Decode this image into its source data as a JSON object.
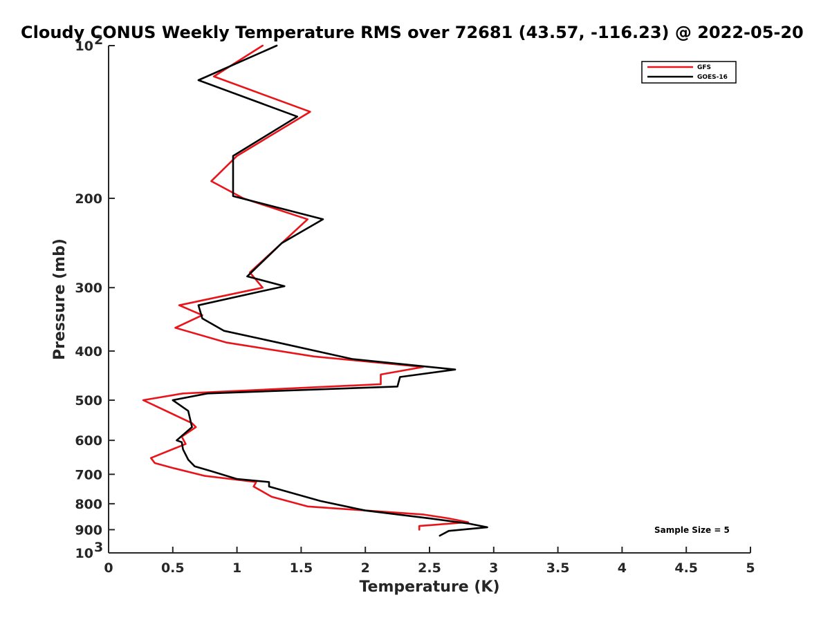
{
  "chart_data": {
    "type": "line",
    "title": "Cloudy CONUS Weekly Temperature RMS over 72681 (43.57, -116.23) @ 2022-05-20",
    "xlabel": "Temperature (K)",
    "ylabel": "Pressure (mb)",
    "xlim": [
      0,
      5
    ],
    "ylim": [
      100,
      1000
    ],
    "y_scale": "log",
    "y_reversed": true,
    "grid": false,
    "legend_position": "top-right",
    "x_ticks": [
      0,
      0.5,
      1,
      1.5,
      2,
      2.5,
      3,
      3.5,
      4,
      4.5,
      5
    ],
    "x_tick_labels": [
      "0",
      "0.5",
      "1",
      "1.5",
      "2",
      "2.5",
      "3",
      "3.5",
      "4",
      "4.5",
      "5"
    ],
    "y_ticks": [
      100,
      200,
      300,
      400,
      500,
      600,
      700,
      800,
      900,
      1000
    ],
    "y_tick_labels": [
      {
        "base": "10",
        "exp": "2"
      },
      {
        "base": "200",
        "exp": ""
      },
      {
        "base": "300",
        "exp": ""
      },
      {
        "base": "400",
        "exp": ""
      },
      {
        "base": "500",
        "exp": ""
      },
      {
        "base": "600",
        "exp": ""
      },
      {
        "base": "700",
        "exp": ""
      },
      {
        "base": "800",
        "exp": ""
      },
      {
        "base": "900",
        "exp": ""
      },
      {
        "base": "10",
        "exp": "3"
      }
    ],
    "annotation": "Sample Size = 5",
    "series": [
      {
        "name": "GFS",
        "color": "#e8141a",
        "points": [
          [
            1.2,
            100
          ],
          [
            0.82,
            115
          ],
          [
            1.57,
            135
          ],
          [
            1.0,
            165
          ],
          [
            0.8,
            185
          ],
          [
            1.05,
            200
          ],
          [
            1.55,
            220
          ],
          [
            1.35,
            245
          ],
          [
            1.1,
            280
          ],
          [
            1.2,
            300
          ],
          [
            0.55,
            325
          ],
          [
            0.73,
            340
          ],
          [
            0.52,
            360
          ],
          [
            0.92,
            385
          ],
          [
            1.6,
            410
          ],
          [
            2.45,
            430
          ],
          [
            2.12,
            445
          ],
          [
            2.12,
            465
          ],
          [
            0.58,
            485
          ],
          [
            0.27,
            500
          ],
          [
            0.65,
            555
          ],
          [
            0.68,
            565
          ],
          [
            0.57,
            590
          ],
          [
            0.6,
            610
          ],
          [
            0.33,
            650
          ],
          [
            0.36,
            665
          ],
          [
            0.5,
            680
          ],
          [
            0.75,
            705
          ],
          [
            1.15,
            725
          ],
          [
            1.13,
            740
          ],
          [
            1.27,
            775
          ],
          [
            1.55,
            810
          ],
          [
            2.45,
            840
          ],
          [
            2.65,
            855
          ],
          [
            2.8,
            870
          ],
          [
            2.42,
            885
          ],
          [
            2.42,
            900
          ]
        ]
      },
      {
        "name": "GOES-16",
        "color": "#000000",
        "points": [
          [
            1.31,
            100
          ],
          [
            0.7,
            117
          ],
          [
            1.47,
            138
          ],
          [
            0.97,
            165
          ],
          [
            0.97,
            185
          ],
          [
            0.97,
            198
          ],
          [
            1.67,
            220
          ],
          [
            1.35,
            245
          ],
          [
            1.08,
            285
          ],
          [
            1.37,
            298
          ],
          [
            0.7,
            325
          ],
          [
            0.73,
            345
          ],
          [
            0.9,
            365
          ],
          [
            1.32,
            385
          ],
          [
            1.9,
            415
          ],
          [
            2.7,
            435
          ],
          [
            2.27,
            450
          ],
          [
            2.25,
            470
          ],
          [
            0.77,
            485
          ],
          [
            0.5,
            500
          ],
          [
            0.62,
            525
          ],
          [
            0.65,
            565
          ],
          [
            0.53,
            600
          ],
          [
            0.57,
            605
          ],
          [
            0.58,
            625
          ],
          [
            0.62,
            655
          ],
          [
            0.67,
            675
          ],
          [
            0.8,
            690
          ],
          [
            1.0,
            715
          ],
          [
            1.25,
            725
          ],
          [
            1.25,
            740
          ],
          [
            1.65,
            790
          ],
          [
            2.0,
            825
          ],
          [
            2.5,
            855
          ],
          [
            2.8,
            875
          ],
          [
            2.95,
            890
          ],
          [
            2.65,
            905
          ],
          [
            2.58,
            925
          ]
        ]
      }
    ]
  }
}
